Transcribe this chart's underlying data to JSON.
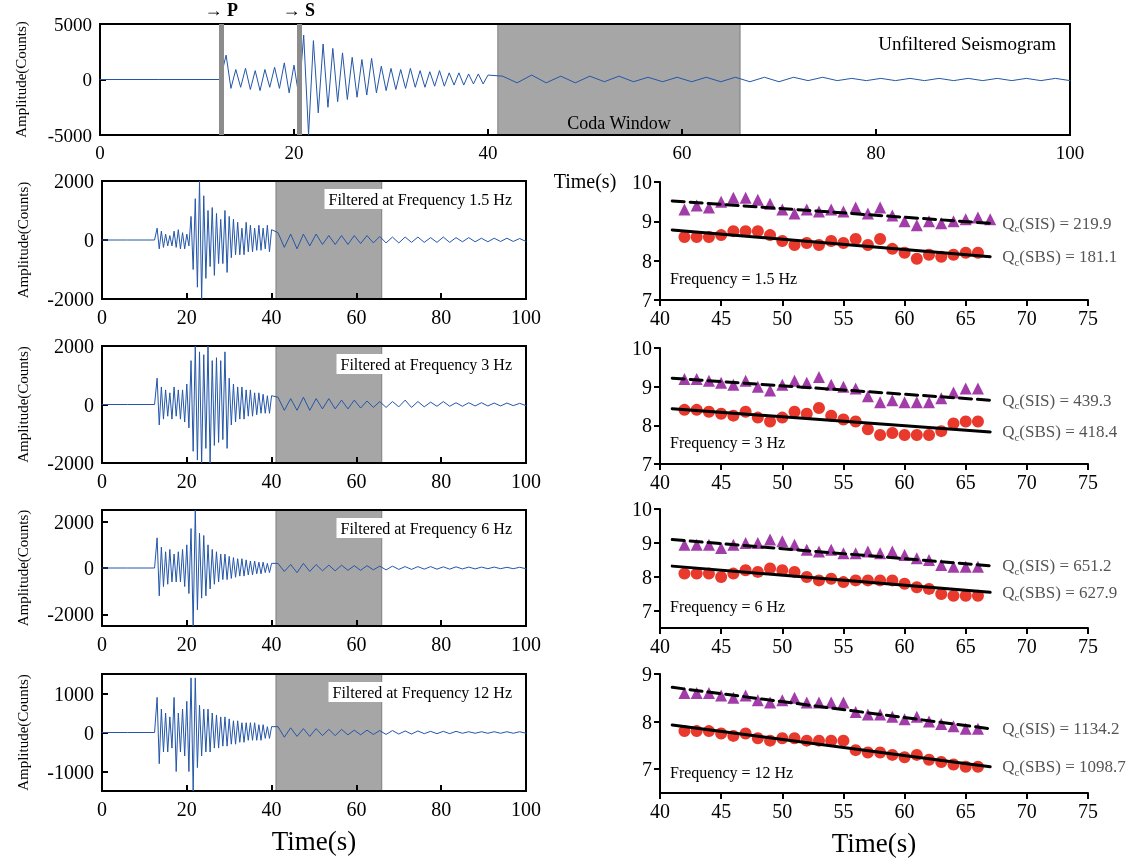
{
  "chart_data": [
    {
      "type": "line",
      "title": "Unfiltered Seismogram",
      "xlabel": "Time(s)",
      "ylabel": "Amplitude(Counts)",
      "color": "#2456a8",
      "marker": "none",
      "xlim": [
        0,
        100
      ],
      "xticks": [
        0,
        20,
        40,
        60,
        80,
        100
      ],
      "ylim": [
        -5000,
        5000
      ],
      "yticks": [
        -5000,
        0,
        5000
      ],
      "ref_lines": [
        {
          "axis": "x",
          "value": 12.5,
          "label": "→ P",
          "color": "#8c8c8c"
        },
        {
          "axis": "x",
          "value": 20.5,
          "label": "→ S",
          "color": "#8c8c8c"
        }
      ],
      "bands": [
        {
          "axis": "x",
          "from": 41,
          "to": 66,
          "label": "Coda Window",
          "color": "#000000"
        }
      ],
      "x": [
        0,
        6,
        12.4,
        13,
        13.5,
        14,
        14.5,
        15,
        15.5,
        16,
        16.5,
        17,
        17.5,
        18,
        18.5,
        19,
        19.5,
        20,
        20.5,
        21,
        21.5,
        22,
        22.5,
        23,
        23.5,
        24,
        24.5,
        25,
        25.5,
        26,
        26.5,
        27,
        27.5,
        28,
        28.5,
        29,
        29.5,
        30,
        30.5,
        31,
        31.5,
        32,
        32.5,
        33,
        33.5,
        34,
        34.5,
        35,
        35.5,
        36,
        36.5,
        37,
        37.5,
        38,
        38.5,
        39,
        39.5,
        40,
        41.5,
        43,
        44.5,
        46,
        47.5,
        49,
        50.5,
        52,
        53.5,
        55,
        56.5,
        58,
        59.5,
        61,
        62.5,
        64,
        65.5,
        67,
        68.5,
        70,
        71.5,
        73,
        74.5,
        76,
        77.5,
        79,
        80.5,
        82,
        83.5,
        85,
        86.5,
        88,
        89.5,
        91,
        92.5,
        94,
        95.5,
        97,
        98.5,
        100
      ],
      "values": [
        0,
        0,
        0,
        2200,
        -800,
        900,
        -700,
        1000,
        -900,
        800,
        -1000,
        900,
        -700,
        1100,
        -800,
        1500,
        -1200,
        1300,
        -1500,
        4000,
        -5000,
        3500,
        -3000,
        3200,
        -2500,
        2800,
        -2000,
        2400,
        -1800,
        2000,
        -1600,
        1800,
        -1400,
        1900,
        -1200,
        1200,
        -1000,
        1000,
        -900,
        900,
        -800,
        1000,
        -700,
        800,
        -700,
        700,
        -600,
        800,
        -600,
        600,
        -500,
        600,
        -500,
        500,
        -400,
        500,
        -400,
        400,
        300,
        -300,
        400,
        -300,
        300,
        -300,
        300,
        -200,
        300,
        -200,
        200,
        -200,
        200,
        -200,
        200,
        -200,
        200,
        -200,
        200,
        -200,
        200,
        -100,
        200,
        -100,
        100,
        -100,
        100,
        -100,
        100,
        -100,
        100,
        -100,
        100,
        -100,
        100,
        -100,
        100,
        -100,
        100,
        -100
      ]
    },
    {
      "type": "line",
      "title": "Filtered at Frequency 1.5 Hz",
      "ylabel": "Amplitude(Counts)",
      "color": "#2456a8",
      "marker": "none",
      "xlim": [
        0,
        100
      ],
      "xticks": [
        0,
        20,
        40,
        60,
        80,
        100
      ],
      "ylim": [
        -2000,
        2000
      ],
      "yticks": [
        -2000,
        0,
        2000
      ],
      "bands": [
        {
          "axis": "x",
          "from": 41,
          "to": 66,
          "color": "#000000"
        }
      ],
      "x": [
        0,
        6,
        12.4,
        13,
        13.5,
        14,
        14.5,
        15,
        15.5,
        16,
        16.5,
        17,
        17.5,
        18,
        18.5,
        19,
        19.5,
        20,
        20.5,
        21,
        21.5,
        22,
        22.5,
        23,
        23.5,
        24,
        24.5,
        25,
        25.5,
        26,
        26.5,
        27,
        27.5,
        28,
        28.5,
        29,
        29.5,
        30,
        30.5,
        31,
        31.5,
        32,
        32.5,
        33,
        33.5,
        34,
        34.5,
        35,
        35.5,
        36,
        36.5,
        37,
        37.5,
        38,
        38.5,
        39,
        39.5,
        40,
        41.5,
        43,
        44.5,
        46,
        47.5,
        49,
        50.5,
        52,
        53.5,
        55,
        56.5,
        58,
        59.5,
        61,
        62.5,
        64,
        65.5,
        67,
        68.5,
        70,
        71.5,
        73,
        74.5,
        76,
        77.5,
        79,
        80.5,
        82,
        83.5,
        85,
        86.5,
        88,
        89.5,
        91,
        92.5,
        94,
        95.5,
        97,
        98.5,
        100
      ],
      "values": [
        0,
        0,
        0,
        400,
        -300,
        300,
        -250,
        200,
        -200,
        150,
        -200,
        300,
        -250,
        350,
        -300,
        250,
        -300,
        200,
        -200,
        800,
        -1000,
        1400,
        -1600,
        2000,
        -2000,
        1500,
        -1300,
        1000,
        -900,
        1100,
        -1200,
        900,
        -800,
        700,
        -800,
        1000,
        -1100,
        800,
        -600,
        700,
        -500,
        600,
        -500,
        400,
        -500,
        600,
        -400,
        500,
        -400,
        400,
        -350,
        500,
        -350,
        400,
        -300,
        500,
        -400,
        350,
        250,
        -250,
        200,
        -300,
        200,
        -200,
        200,
        -150,
        150,
        -150,
        150,
        -150,
        150,
        -120,
        150,
        -100,
        120,
        -100,
        100,
        -100,
        100,
        -80,
        100,
        -80,
        80,
        -80,
        100,
        -80,
        80,
        -60,
        80,
        -60,
        60,
        -60,
        60,
        -50,
        60,
        -50,
        50,
        -50
      ]
    },
    {
      "type": "scatter",
      "annotations": [
        "Frequency = 1.5 Hz"
      ],
      "xlim": [
        40,
        75
      ],
      "xticks": [
        40,
        45,
        50,
        55,
        60,
        65,
        70,
        75
      ],
      "ylim": [
        7,
        10
      ],
      "yticks": [
        7,
        8,
        9,
        10
      ],
      "series": [
        {
          "color": "#a23ca8",
          "marker": "triangle",
          "x": [
            42,
            43,
            44,
            45,
            46,
            47,
            48,
            49,
            50,
            51,
            52,
            53,
            54,
            55,
            56,
            57,
            58,
            59,
            60,
            61,
            62,
            63,
            64,
            65,
            66,
            67
          ],
          "values": [
            9.3,
            9.4,
            9.35,
            9.5,
            9.6,
            9.6,
            9.55,
            9.45,
            9.3,
            9.2,
            9.3,
            9.25,
            9.3,
            9.25,
            9.35,
            9.2,
            9.35,
            9.15,
            9.0,
            8.9,
            9.0,
            8.95,
            9.0,
            9.05,
            9.1,
            9.05
          ]
        },
        {
          "color": "#e8392c",
          "marker": "circle",
          "x": [
            42,
            43,
            44,
            45,
            46,
            47,
            48,
            49,
            50,
            51,
            52,
            53,
            54,
            55,
            56,
            57,
            58,
            59,
            60,
            61,
            62,
            63,
            64,
            65,
            66
          ],
          "values": [
            8.6,
            8.6,
            8.6,
            8.65,
            8.75,
            8.75,
            8.75,
            8.65,
            8.5,
            8.4,
            8.45,
            8.4,
            8.5,
            8.45,
            8.55,
            8.4,
            8.55,
            8.3,
            8.2,
            8.05,
            8.15,
            8.1,
            8.15,
            8.2,
            8.2
          ]
        },
        {
          "type": "line",
          "name": "Q$_{c}$(SIS) = 219.9",
          "color": "#000000",
          "marker": "none",
          "line_style": "dashed",
          "x": [
            41,
            67
          ],
          "values": [
            9.52,
            8.95
          ]
        },
        {
          "type": "line",
          "name": "Q$_{c}$(SBS) = 181.1",
          "color": "#000000",
          "marker": "none",
          "line_style": "solid",
          "x": [
            41,
            67
          ],
          "values": [
            8.78,
            8.1
          ]
        }
      ]
    },
    {
      "type": "line",
      "title": "Filtered at Frequency 3 Hz",
      "ylabel": "Amplitude(Counts)",
      "color": "#2456a8",
      "marker": "none",
      "xlim": [
        0,
        100
      ],
      "xticks": [
        0,
        20,
        40,
        60,
        80,
        100
      ],
      "ylim": [
        -2000,
        2000
      ],
      "yticks": [
        -2000,
        0,
        2000
      ],
      "bands": [
        {
          "axis": "x",
          "from": 41,
          "to": 66,
          "color": "#000000"
        }
      ],
      "x": [
        0,
        6,
        12.4,
        13,
        13.5,
        14,
        14.5,
        15,
        15.5,
        16,
        16.5,
        17,
        17.5,
        18,
        18.5,
        19,
        19.5,
        20,
        20.5,
        21,
        21.5,
        22,
        22.5,
        23,
        23.5,
        24,
        24.5,
        25,
        25.5,
        26,
        26.5,
        27,
        27.5,
        28,
        28.5,
        29,
        29.5,
        30,
        30.5,
        31,
        31.5,
        32,
        32.5,
        33,
        33.5,
        34,
        34.5,
        35,
        35.5,
        36,
        36.5,
        37,
        37.5,
        38,
        38.5,
        39,
        39.5,
        40,
        41.5,
        43,
        44.5,
        46,
        47.5,
        49,
        50.5,
        52,
        53.5,
        55,
        56.5,
        58,
        59.5,
        61,
        62.5,
        64,
        65.5,
        67,
        68.5,
        70,
        71.5,
        73,
        74.5,
        76,
        77.5,
        79,
        80.5,
        82,
        83.5,
        85,
        86.5,
        88,
        89.5,
        91,
        92.5,
        94,
        95.5,
        97,
        98.5,
        100
      ],
      "values": [
        0,
        0,
        0,
        900,
        -700,
        600,
        -500,
        500,
        -400,
        400,
        -500,
        600,
        -400,
        500,
        -500,
        500,
        -600,
        700,
        -800,
        1500,
        -1600,
        2000,
        -1900,
        1800,
        -2000,
        1700,
        -1500,
        2000,
        -2000,
        1500,
        -1400,
        1600,
        -1300,
        1500,
        -1200,
        1800,
        -1500,
        900,
        -700,
        700,
        -600,
        600,
        -500,
        600,
        -500,
        500,
        -400,
        500,
        -400,
        400,
        -350,
        400,
        -300,
        350,
        -300,
        300,
        -300,
        300,
        250,
        -200,
        200,
        -200,
        250,
        -200,
        200,
        -150,
        200,
        -150,
        150,
        -150,
        150,
        -120,
        120,
        -100,
        100,
        -100,
        100,
        -80,
        150,
        -100,
        100,
        -80,
        80,
        -60,
        100,
        -60,
        60,
        -60,
        60,
        -50,
        60,
        -50,
        50,
        -50,
        50,
        -40,
        40,
        -40
      ]
    },
    {
      "type": "scatter",
      "annotations": [
        "Frequency = 3 Hz"
      ],
      "xlim": [
        40,
        75
      ],
      "xticks": [
        40,
        45,
        50,
        55,
        60,
        65,
        70,
        75
      ],
      "ylim": [
        7,
        10
      ],
      "yticks": [
        7,
        8,
        9,
        10
      ],
      "series": [
        {
          "color": "#a23ca8",
          "marker": "triangle",
          "x": [
            42,
            43,
            44,
            45,
            46,
            47,
            48,
            49,
            50,
            51,
            52,
            53,
            54,
            55,
            56,
            57,
            58,
            59,
            60,
            61,
            62,
            63,
            64,
            65,
            66
          ],
          "values": [
            9.2,
            9.2,
            9.15,
            9.1,
            9.05,
            9.15,
            9.0,
            8.9,
            9.05,
            9.15,
            9.1,
            9.25,
            9.05,
            9.0,
            8.95,
            8.75,
            8.6,
            8.65,
            8.6,
            8.6,
            8.6,
            8.7,
            8.85,
            8.95,
            8.95
          ]
        },
        {
          "color": "#e8392c",
          "marker": "circle",
          "x": [
            42,
            43,
            44,
            45,
            46,
            47,
            48,
            49,
            50,
            51,
            52,
            53,
            54,
            55,
            56,
            57,
            58,
            59,
            60,
            61,
            62,
            63,
            64,
            65,
            66
          ],
          "values": [
            8.4,
            8.4,
            8.35,
            8.3,
            8.25,
            8.35,
            8.2,
            8.1,
            8.2,
            8.35,
            8.3,
            8.45,
            8.25,
            8.15,
            8.1,
            7.9,
            7.75,
            7.8,
            7.75,
            7.75,
            7.75,
            7.85,
            8.05,
            8.1,
            8.1
          ]
        },
        {
          "type": "line",
          "name": "Q$_{c}$(SIS) = 439.3",
          "color": "#000000",
          "marker": "none",
          "line_style": "dashed",
          "x": [
            41,
            67
          ],
          "values": [
            9.22,
            8.65
          ]
        },
        {
          "type": "line",
          "name": "Q$_{c}$(SBS) = 418.4",
          "color": "#000000",
          "marker": "none",
          "line_style": "solid",
          "x": [
            41,
            67
          ],
          "values": [
            8.43,
            7.83
          ]
        }
      ]
    },
    {
      "type": "line",
      "title": "Filtered at Frequency 6 Hz",
      "ylabel": "Amplitude(Counts)",
      "color": "#2456a8",
      "marker": "none",
      "xlim": [
        0,
        100
      ],
      "xticks": [
        0,
        20,
        40,
        60,
        80,
        100
      ],
      "ylim": [
        -2500,
        2500
      ],
      "yticks": [
        -2000,
        0,
        2000
      ],
      "bands": [
        {
          "axis": "x",
          "from": 41,
          "to": 66,
          "color": "#000000"
        }
      ],
      "x": [
        0,
        6,
        12.4,
        13,
        13.5,
        14,
        14.5,
        15,
        15.5,
        16,
        16.5,
        17,
        17.5,
        18,
        18.5,
        19,
        19.5,
        20,
        20.5,
        21,
        21.5,
        22,
        22.5,
        23,
        23.5,
        24,
        24.5,
        25,
        25.5,
        26,
        26.5,
        27,
        27.5,
        28,
        28.5,
        29,
        29.5,
        30,
        30.5,
        31,
        31.5,
        32,
        32.5,
        33,
        33.5,
        34,
        34.5,
        35,
        35.5,
        36,
        36.5,
        37,
        37.5,
        38,
        38.5,
        39,
        39.5,
        40,
        41.5,
        43,
        44.5,
        46,
        47.5,
        49,
        50.5,
        52,
        53.5,
        55,
        56.5,
        58,
        59.5,
        61,
        62.5,
        64,
        65.5,
        67,
        68.5,
        70,
        71.5,
        73,
        74.5,
        76,
        77.5,
        79,
        80.5,
        82,
        83.5,
        85,
        86.5,
        88,
        89.5,
        91,
        92.5,
        94,
        95.5,
        97,
        98.5,
        100
      ],
      "values": [
        0,
        0,
        0,
        1300,
        -1200,
        900,
        -800,
        700,
        -700,
        800,
        -600,
        600,
        -600,
        700,
        -600,
        800,
        -800,
        1000,
        -1100,
        1700,
        -2500,
        2500,
        -1800,
        1500,
        -1300,
        1400,
        -1200,
        1000,
        -900,
        800,
        -700,
        700,
        -600,
        600,
        -500,
        600,
        -500,
        500,
        -450,
        450,
        -400,
        400,
        -350,
        400,
        -350,
        350,
        -300,
        300,
        -300,
        300,
        -250,
        250,
        -250,
        250,
        -200,
        200,
        -200,
        200,
        200,
        -150,
        150,
        -200,
        200,
        -150,
        150,
        -120,
        120,
        -120,
        120,
        -100,
        100,
        -100,
        100,
        -80,
        80,
        -80,
        80,
        -60,
        60,
        -60,
        60,
        -50,
        60,
        -50,
        50,
        -50,
        50,
        -40,
        40,
        -40,
        40,
        -30,
        40,
        -30,
        30,
        -30,
        30,
        -30
      ]
    },
    {
      "type": "scatter",
      "annotations": [
        "Frequency = 6 Hz"
      ],
      "xlim": [
        40,
        75
      ],
      "xticks": [
        40,
        45,
        50,
        55,
        60,
        65,
        70,
        75
      ],
      "ylim": [
        6.5,
        10
      ],
      "yticks": [
        7,
        8,
        9,
        10
      ],
      "series": [
        {
          "color": "#a23ca8",
          "marker": "triangle",
          "x": [
            42,
            43,
            44,
            45,
            46,
            47,
            48,
            49,
            50,
            51,
            52,
            53,
            54,
            55,
            56,
            57,
            58,
            59,
            60,
            61,
            62,
            63,
            64,
            65,
            66
          ],
          "values": [
            8.95,
            8.95,
            8.95,
            8.85,
            8.95,
            9.0,
            9.0,
            9.1,
            9.05,
            8.95,
            8.8,
            8.75,
            8.8,
            8.7,
            8.7,
            8.75,
            8.7,
            8.75,
            8.65,
            8.55,
            8.5,
            8.35,
            8.3,
            8.3,
            8.3
          ]
        },
        {
          "color": "#e8392c",
          "marker": "circle",
          "x": [
            42,
            43,
            44,
            45,
            46,
            47,
            48,
            49,
            50,
            51,
            52,
            53,
            54,
            55,
            56,
            57,
            58,
            59,
            60,
            61,
            62,
            63,
            64,
            65,
            66
          ],
          "values": [
            8.1,
            8.1,
            8.1,
            8.0,
            8.1,
            8.2,
            8.15,
            8.25,
            8.2,
            8.15,
            8.0,
            7.9,
            7.95,
            7.85,
            7.9,
            7.9,
            7.9,
            7.9,
            7.8,
            7.7,
            7.65,
            7.5,
            7.45,
            7.45,
            7.45
          ]
        },
        {
          "type": "line",
          "name": "Q$_{c}$(SIS) = 651.2",
          "color": "#000000",
          "marker": "none",
          "line_style": "dashed",
          "x": [
            41,
            67
          ],
          "values": [
            9.1,
            8.33
          ]
        },
        {
          "type": "line",
          "name": "Q$_{c}$(SBS) = 627.9",
          "color": "#000000",
          "marker": "none",
          "line_style": "solid",
          "x": [
            41,
            67
          ],
          "values": [
            8.32,
            7.55
          ]
        }
      ]
    },
    {
      "type": "line",
      "title": "Filtered at Frequency 12 Hz",
      "xlabel": "Time(s)",
      "ylabel": "Amplitude(Counts)",
      "color": "#2456a8",
      "marker": "none",
      "xlim": [
        0,
        100
      ],
      "xticks": [
        0,
        20,
        40,
        60,
        80,
        100
      ],
      "ylim": [
        -1500,
        1500
      ],
      "yticks": [
        -1000,
        0,
        1000
      ],
      "bands": [
        {
          "axis": "x",
          "from": 41,
          "to": 66,
          "color": "#000000"
        }
      ],
      "x": [
        0,
        6,
        12.4,
        13,
        13.5,
        14,
        14.5,
        15,
        15.5,
        16,
        16.5,
        17,
        17.5,
        18,
        18.5,
        19,
        19.5,
        20,
        20.5,
        21,
        21.5,
        22,
        22.5,
        23,
        23.5,
        24,
        24.5,
        25,
        25.5,
        26,
        26.5,
        27,
        27.5,
        28,
        28.5,
        29,
        29.5,
        30,
        30.5,
        31,
        31.5,
        32,
        32.5,
        33,
        33.5,
        34,
        34.5,
        35,
        35.5,
        36,
        36.5,
        37,
        37.5,
        38,
        38.5,
        39,
        39.5,
        40,
        41.5,
        43,
        44.5,
        46,
        47.5,
        49,
        50.5,
        52,
        53.5,
        55,
        56.5,
        58,
        59.5,
        61,
        62.5,
        64,
        65.5,
        67,
        68.5,
        70,
        71.5,
        73,
        74.5,
        76,
        77.5,
        79,
        80.5,
        82,
        83.5,
        85,
        86.5,
        88,
        89.5,
        91,
        92.5,
        94,
        95.5,
        97,
        98.5,
        100
      ],
      "values": [
        0,
        0,
        0,
        900,
        -800,
        600,
        -500,
        500,
        -500,
        400,
        -400,
        900,
        -1000,
        500,
        -500,
        600,
        -600,
        800,
        -1000,
        1400,
        -1500,
        1400,
        -900,
        700,
        -600,
        600,
        -500,
        600,
        -500,
        500,
        -400,
        450,
        -400,
        400,
        -350,
        400,
        -350,
        350,
        -300,
        300,
        -300,
        300,
        -250,
        250,
        -250,
        250,
        -200,
        250,
        -200,
        250,
        -200,
        200,
        -200,
        200,
        -150,
        150,
        -150,
        150,
        150,
        -120,
        120,
        -100,
        100,
        -100,
        100,
        -80,
        80,
        -80,
        80,
        -60,
        60,
        -60,
        60,
        -50,
        50,
        -50,
        50,
        -40,
        40,
        -40,
        40,
        -30,
        30,
        -30,
        30,
        -30,
        30,
        -20,
        20,
        -20,
        20,
        -20,
        20,
        -20,
        20,
        -20,
        20,
        -20
      ]
    },
    {
      "type": "scatter",
      "xlabel": "Time(s)",
      "annotations": [
        "Frequency = 12 Hz"
      ],
      "xlim": [
        40,
        75
      ],
      "xticks": [
        40,
        45,
        50,
        55,
        60,
        65,
        70,
        75
      ],
      "ylim": [
        6.5,
        9
      ],
      "yticks": [
        7,
        8,
        9
      ],
      "series": [
        {
          "color": "#a23ca8",
          "marker": "triangle",
          "x": [
            42,
            43,
            44,
            45,
            46,
            47,
            48,
            49,
            50,
            51,
            52,
            53,
            54,
            55,
            56,
            57,
            58,
            59,
            60,
            61,
            62,
            63,
            64,
            65,
            66
          ],
          "values": [
            8.6,
            8.6,
            8.6,
            8.55,
            8.5,
            8.55,
            8.45,
            8.4,
            8.45,
            8.5,
            8.4,
            8.4,
            8.4,
            8.4,
            8.2,
            8.15,
            8.15,
            8.1,
            8.05,
            8.1,
            8.0,
            7.95,
            7.9,
            7.85,
            7.85
          ]
        },
        {
          "color": "#e8392c",
          "marker": "circle",
          "x": [
            42,
            43,
            44,
            45,
            46,
            47,
            48,
            49,
            50,
            51,
            52,
            53,
            54,
            55,
            56,
            57,
            58,
            59,
            60,
            61,
            62,
            63,
            64,
            65,
            66
          ],
          "values": [
            7.8,
            7.8,
            7.8,
            7.75,
            7.7,
            7.75,
            7.65,
            7.6,
            7.65,
            7.65,
            7.6,
            7.6,
            7.6,
            7.6,
            7.4,
            7.35,
            7.35,
            7.3,
            7.25,
            7.3,
            7.2,
            7.15,
            7.1,
            7.05,
            7.05
          ]
        },
        {
          "type": "line",
          "name": "Q$_{c}$(SIS) = 1134.2",
          "color": "#000000",
          "marker": "none",
          "line_style": "dashed",
          "x": [
            41,
            67
          ],
          "values": [
            8.72,
            7.85
          ]
        },
        {
          "type": "line",
          "name": "Q$_{c}$(SBS) = 1098.7",
          "color": "#000000",
          "marker": "none",
          "line_style": "solid",
          "x": [
            41,
            67
          ],
          "values": [
            7.93,
            7.05
          ]
        }
      ]
    }
  ]
}
